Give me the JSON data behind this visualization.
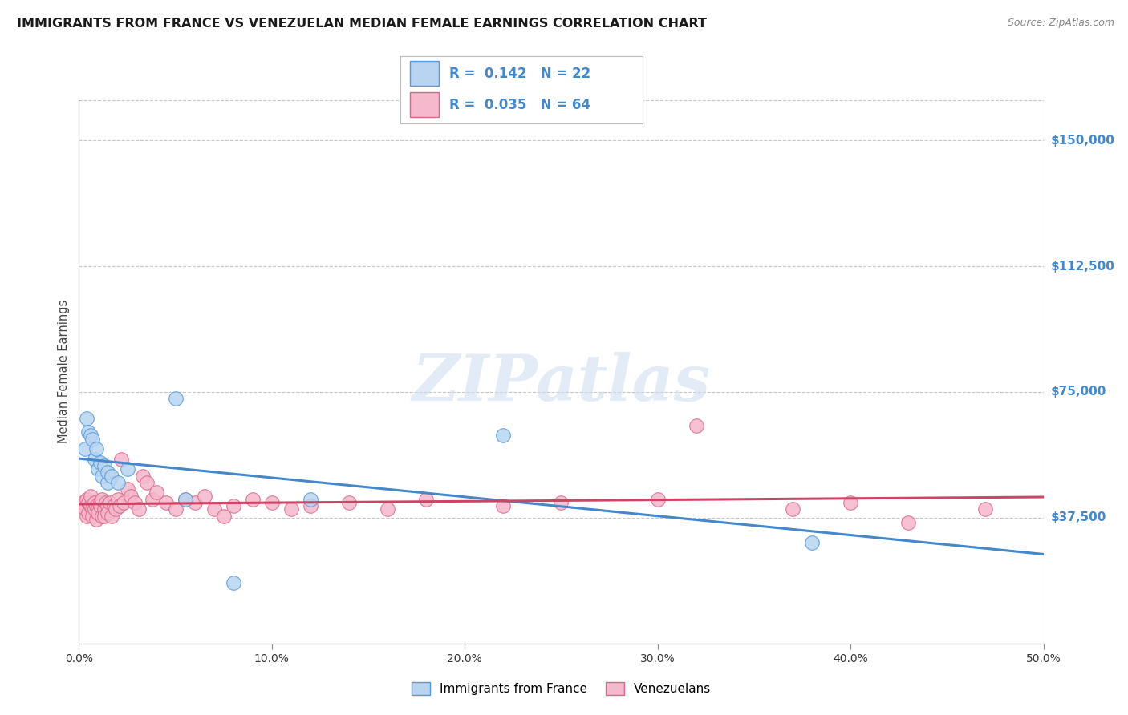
{
  "title": "IMMIGRANTS FROM FRANCE VS VENEZUELAN MEDIAN FEMALE EARNINGS CORRELATION CHART",
  "source": "Source: ZipAtlas.com",
  "ylabel": "Median Female Earnings",
  "yticks": [
    37500,
    75000,
    112500,
    150000
  ],
  "ytick_labels": [
    "$37,500",
    "$75,000",
    "$112,500",
    "$150,000"
  ],
  "xlim": [
    0.0,
    0.5
  ],
  "ylim": [
    0,
    162000
  ],
  "xticks": [
    0.0,
    0.1,
    0.2,
    0.3,
    0.4,
    0.5
  ],
  "xtick_labels": [
    "0.0%",
    "10.0%",
    "20.0%",
    "30.0%",
    "40.0%",
    "50.0%"
  ],
  "legend1_label": "Immigrants from France",
  "legend2_label": "Venezuelans",
  "R_france": "0.142",
  "N_france": "22",
  "R_venezuel": "0.035",
  "N_venezuel": "64",
  "france_fill": "#b8d4f0",
  "france_edge": "#5599dd",
  "france_line": "#4488cc",
  "venezuel_fill": "#f5b8cc",
  "venezuel_edge": "#dd6688",
  "venezuel_line": "#cc4466",
  "background": "#ffffff",
  "grid_color": "#c8c8c8",
  "watermark": "ZIPatlas",
  "france_x": [
    0.003,
    0.004,
    0.005,
    0.006,
    0.007,
    0.008,
    0.009,
    0.01,
    0.011,
    0.012,
    0.013,
    0.015,
    0.015,
    0.017,
    0.02,
    0.025,
    0.05,
    0.055,
    0.08,
    0.12,
    0.22,
    0.38
  ],
  "france_y": [
    58000,
    67000,
    63000,
    62000,
    61000,
    55000,
    58000,
    52000,
    54000,
    50000,
    53000,
    48000,
    51000,
    50000,
    48000,
    52000,
    73000,
    43000,
    18000,
    43000,
    62000,
    30000
  ],
  "venezuel_x": [
    0.002,
    0.003,
    0.004,
    0.004,
    0.005,
    0.005,
    0.006,
    0.006,
    0.007,
    0.007,
    0.008,
    0.008,
    0.009,
    0.009,
    0.01,
    0.01,
    0.011,
    0.011,
    0.012,
    0.012,
    0.013,
    0.013,
    0.014,
    0.015,
    0.015,
    0.016,
    0.017,
    0.018,
    0.019,
    0.02,
    0.021,
    0.022,
    0.023,
    0.025,
    0.027,
    0.029,
    0.031,
    0.033,
    0.035,
    0.038,
    0.04,
    0.045,
    0.05,
    0.055,
    0.06,
    0.065,
    0.07,
    0.075,
    0.08,
    0.09,
    0.1,
    0.11,
    0.12,
    0.14,
    0.16,
    0.18,
    0.22,
    0.25,
    0.3,
    0.32,
    0.37,
    0.4,
    0.43,
    0.47
  ],
  "venezuel_y": [
    42000,
    40000,
    43000,
    38000,
    42000,
    39000,
    41000,
    44000,
    40000,
    38000,
    42000,
    40000,
    41000,
    37000,
    40000,
    39000,
    42000,
    41000,
    38000,
    43000,
    40000,
    38000,
    42000,
    41000,
    39000,
    42000,
    38000,
    41000,
    40000,
    43000,
    41000,
    55000,
    42000,
    46000,
    44000,
    42000,
    40000,
    50000,
    48000,
    43000,
    45000,
    42000,
    40000,
    43000,
    42000,
    44000,
    40000,
    38000,
    41000,
    43000,
    42000,
    40000,
    41000,
    42000,
    40000,
    43000,
    41000,
    42000,
    43000,
    65000,
    40000,
    42000,
    36000,
    40000
  ]
}
